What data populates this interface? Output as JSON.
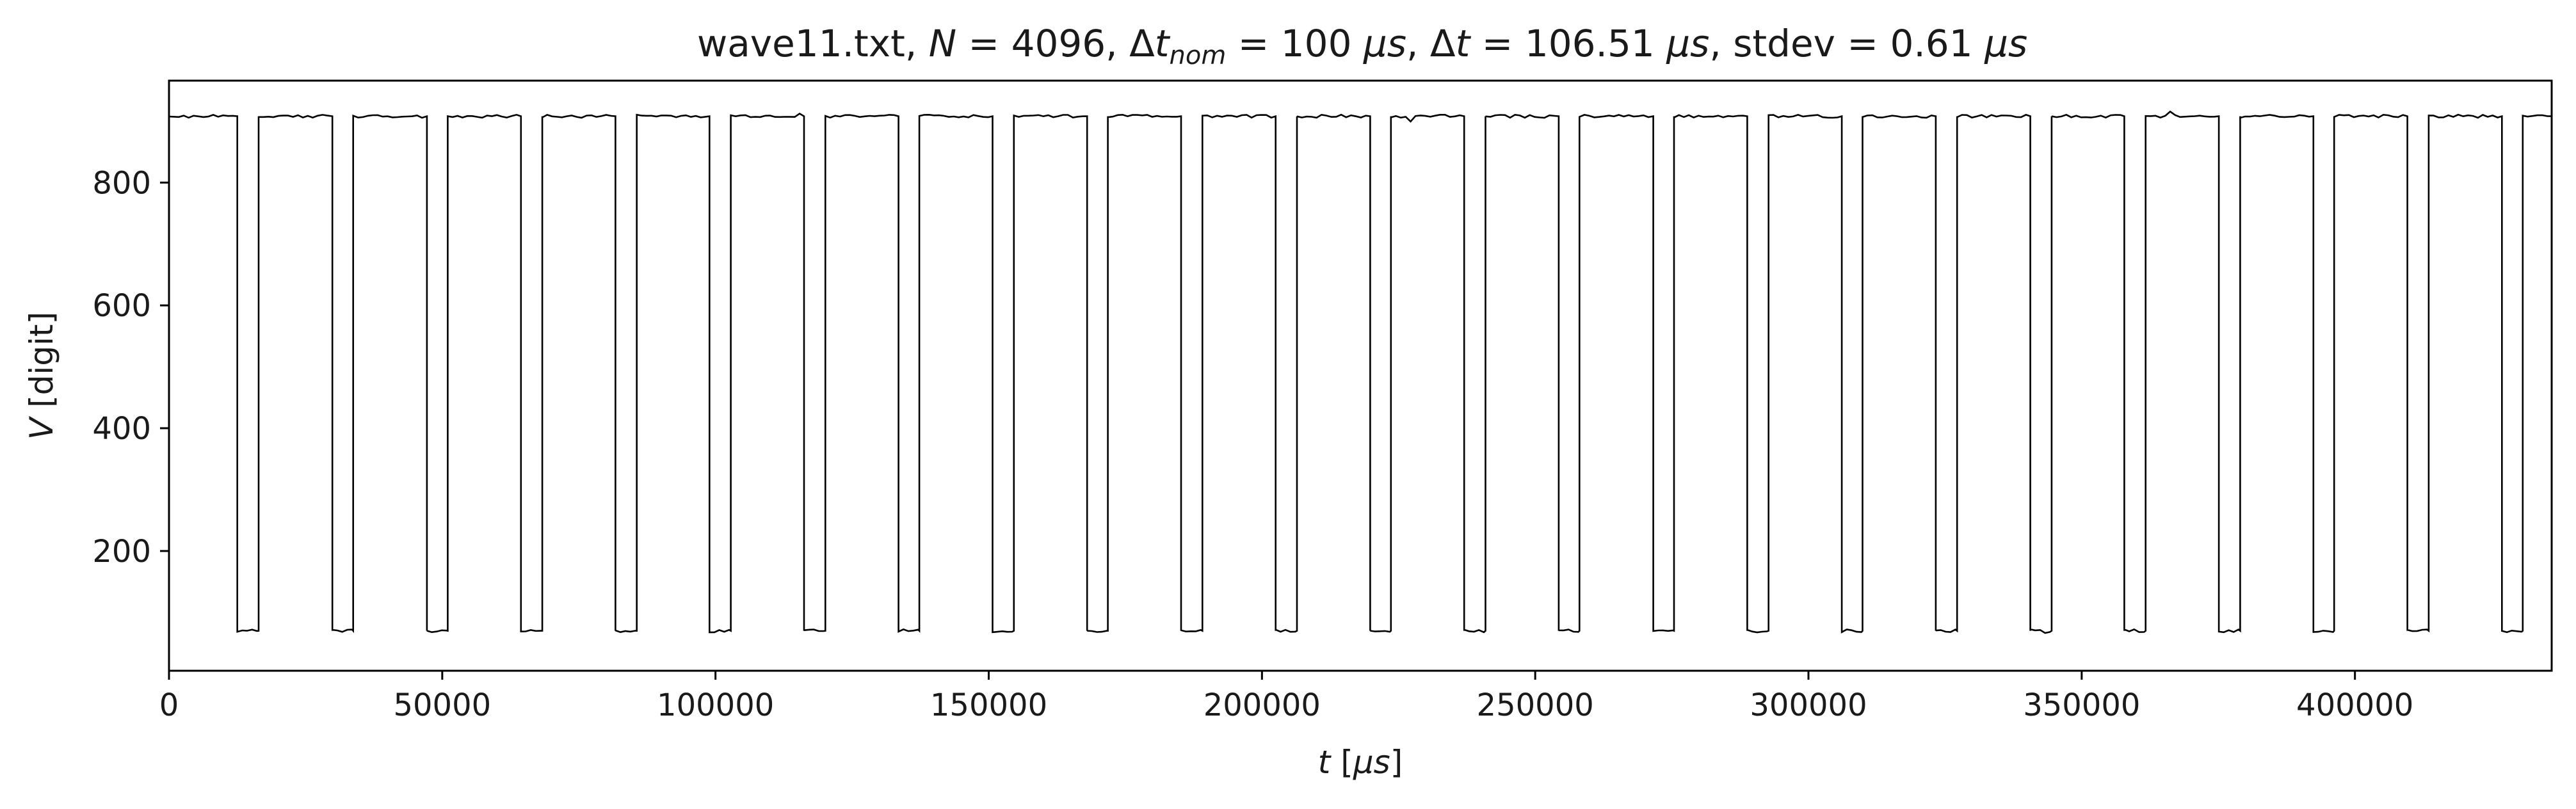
{
  "chart_data": {
    "type": "line",
    "title_parts": {
      "file": "wave11.txt, ",
      "n_sym": "N",
      "n_val": " = 4096, ",
      "dtnom_delta": "Δ",
      "dtnom_t": "t",
      "dtnom_sub": "nom",
      "dtnom_val": " = 100 ",
      "unit1": "μs",
      "sep1": ", ",
      "dt_delta": "Δ",
      "dt_t": "t",
      "dt_val": " = 106.51 ",
      "unit2": "μs",
      "stdev": ", stdev = 0.61 ",
      "unit3": "μs"
    },
    "xlabel_parts": {
      "sym": "t",
      "open": " [",
      "unit": "μs",
      "close": "]"
    },
    "ylabel_parts": {
      "sym": "V",
      "rest": " [digit]"
    },
    "xlim": [
      0,
      436000
    ],
    "ylim": [
      5,
      966
    ],
    "x_ticks": [
      0,
      50000,
      100000,
      150000,
      200000,
      250000,
      300000,
      350000,
      400000
    ],
    "y_ticks": [
      200,
      400,
      600,
      800
    ],
    "grid": false,
    "legend": "none",
    "line_color": "#000000",
    "series": [
      {
        "high_level": 908,
        "low_level": 70,
        "low_intervals": [
          [
            12500,
            16400
          ],
          [
            29900,
            33700
          ],
          [
            47200,
            51000
          ],
          [
            64400,
            68300
          ],
          [
            81700,
            85600
          ],
          [
            98900,
            102800
          ],
          [
            116200,
            120100
          ],
          [
            133500,
            137300
          ],
          [
            150700,
            154600
          ],
          [
            168000,
            171800
          ],
          [
            185200,
            189100
          ],
          [
            202500,
            206400
          ],
          [
            219800,
            223600
          ],
          [
            237000,
            240900
          ],
          [
            254300,
            258100
          ],
          [
            271600,
            275400
          ],
          [
            288800,
            292700
          ],
          [
            306100,
            309900
          ],
          [
            323300,
            327200
          ],
          [
            340600,
            344500
          ],
          [
            357800,
            361700
          ],
          [
            375100,
            379000
          ],
          [
            392400,
            396200
          ],
          [
            409600,
            413500
          ],
          [
            426900,
            430700
          ]
        ]
      }
    ]
  }
}
